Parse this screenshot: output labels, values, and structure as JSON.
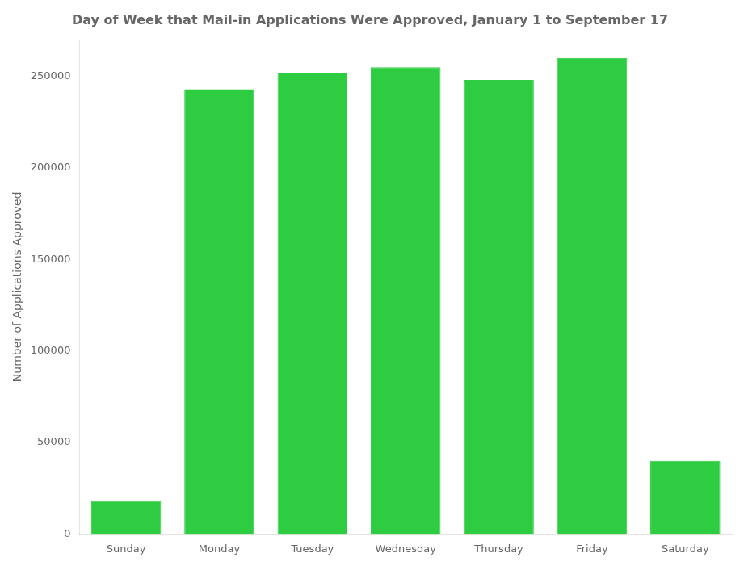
{
  "chart_data": {
    "type": "bar",
    "title": "Day of Week that Mail-in Applications Were Approved, January 1 to September 17",
    "ylabel": "Number of Applications Approved",
    "categories": [
      "Sunday",
      "Monday",
      "Tuesday",
      "Wednesday",
      "Thursday",
      "Friday",
      "Saturday"
    ],
    "values": [
      18000,
      243000,
      252000,
      255000,
      248000,
      260000,
      40000
    ],
    "color": "#2ecc40",
    "ylim": [
      0,
      270000
    ],
    "yticks": [
      0,
      50000,
      100000,
      150000,
      200000,
      250000
    ],
    "grid": false
  }
}
